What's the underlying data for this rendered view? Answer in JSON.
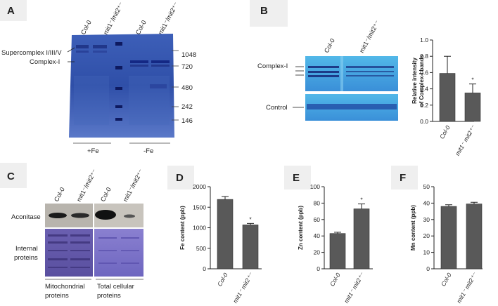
{
  "panels": {
    "A": {
      "letter": "A",
      "lanes": [
        "Col-0",
        "mit1⁻/mit2⁺⁻",
        "Col-0",
        "mit1⁻/mit2⁺⁻"
      ],
      "band_labels": [
        "Supercomplex I/III/V",
        "Complex-I"
      ],
      "markers": [
        "1048",
        "720",
        "480",
        "242",
        "146"
      ],
      "conditions": [
        "+Fe",
        "-Fe"
      ]
    },
    "B": {
      "letter": "B",
      "lanes": [
        "Col-0",
        "mit1⁻/mit2⁺⁻"
      ],
      "row_labels": [
        "Complex-I",
        "Control"
      ]
    },
    "C": {
      "letter": "C",
      "lanes": [
        "Col-0",
        "mit1⁻/mit2⁺⁻",
        "Col-0",
        "mit1⁻/mit2⁺⁻"
      ],
      "row_labels": [
        "Aconitase",
        "Internal",
        "proteins"
      ],
      "sections": [
        "Mitochondrial",
        "proteins",
        "Total cellular",
        "proteins"
      ]
    },
    "D": {
      "letter": "D"
    },
    "E": {
      "letter": "E"
    },
    "F": {
      "letter": "F"
    }
  },
  "chart_data": [
    {
      "id": "B",
      "type": "bar",
      "categories": [
        "Col-0",
        "mit1⁻ mit2⁺⁻"
      ],
      "values": [
        0.59,
        0.35
      ],
      "errors": [
        0.21,
        0.11
      ],
      "significance": [
        "",
        "*"
      ],
      "ylabel": "Relative intensity of Complex-I bands",
      "ylim": [
        0,
        1.0
      ],
      "yticks": [
        "0.0",
        "0.2",
        "0.4",
        "0.6",
        "0.8",
        "1.0"
      ],
      "bar_color": "#595959"
    },
    {
      "id": "D",
      "type": "bar",
      "categories": [
        "Col-0",
        "mit1⁻ mit2⁺⁻"
      ],
      "values": [
        1690,
        1070
      ],
      "errors": [
        70,
        35
      ],
      "significance": [
        "",
        "*"
      ],
      "ylabel": "Fe content (ppb)",
      "ylim": [
        0,
        2000
      ],
      "yticks": [
        "0",
        "500",
        "1000",
        "1500",
        "2000"
      ],
      "bar_color": "#595959"
    },
    {
      "id": "E",
      "type": "bar",
      "categories": [
        "Col-0",
        "mit1⁻ mit2⁺⁻"
      ],
      "values": [
        43,
        73
      ],
      "errors": [
        1.5,
        6
      ],
      "significance": [
        "",
        "*"
      ],
      "ylabel": "Zn content (ppb)",
      "ylim": [
        0,
        100
      ],
      "yticks": [
        "0",
        "20",
        "40",
        "60",
        "80",
        "100"
      ],
      "bar_color": "#595959"
    },
    {
      "id": "F",
      "type": "bar",
      "categories": [
        "Col-0",
        "mit1⁻ mit2⁺⁻"
      ],
      "values": [
        38,
        39.5
      ],
      "errors": [
        1,
        1
      ],
      "significance": [
        "",
        ""
      ],
      "ylabel": "Mn content (ppb)",
      "ylim": [
        0,
        50
      ],
      "yticks": [
        "0",
        "10",
        "20",
        "30",
        "40",
        "50"
      ],
      "bar_color": "#595959"
    }
  ]
}
